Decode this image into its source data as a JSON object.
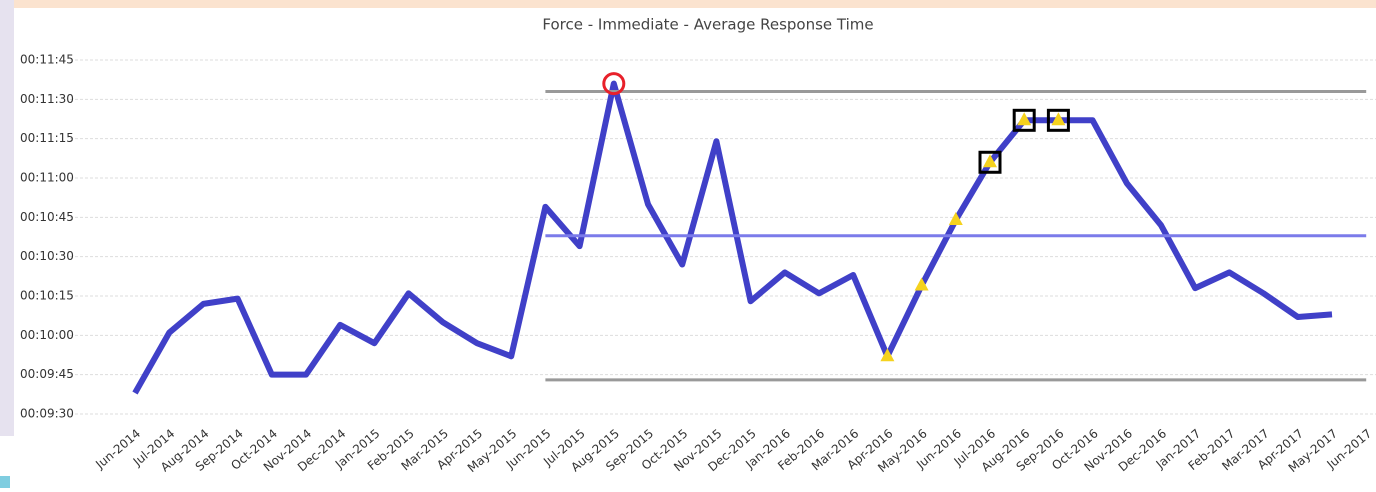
{
  "chart_data": {
    "type": "line",
    "title": "Force - Immediate - Average Response Time",
    "categories": [
      "Jun-2014",
      "Jul-2014",
      "Aug-2014",
      "Sep-2014",
      "Oct-2014",
      "Nov-2014",
      "Dec-2014",
      "Jan-2015",
      "Feb-2015",
      "Mar-2015",
      "Apr-2015",
      "May-2015",
      "Jun-2015",
      "Jul-2015",
      "Aug-2015",
      "Sep-2015",
      "Oct-2015",
      "Nov-2015",
      "Dec-2015",
      "Jan-2016",
      "Feb-2016",
      "Mar-2016",
      "Apr-2016",
      "May-2016",
      "Jun-2016",
      "Jul-2016",
      "Aug-2016",
      "Sep-2016",
      "Oct-2016",
      "Nov-2016",
      "Dec-2016",
      "Jan-2017",
      "Feb-2017",
      "Mar-2017",
      "Apr-2017",
      "May-2017",
      "Jun-2017"
    ],
    "series": [
      {
        "color": "#4040c8",
        "width": 6,
        "values": [
          578,
          601,
          612,
          614,
          585,
          585,
          604,
          597,
          616,
          605,
          597,
          592,
          649,
          634,
          696,
          650,
          627,
          674,
          613,
          624,
          616,
          623,
          592,
          619,
          644,
          666,
          682,
          682,
          682,
          658,
          642,
          618,
          624,
          616,
          607,
          608,
          null
        ]
      },
      {
        "color": "#999999",
        "width": 3,
        "values": [
          null,
          null,
          null,
          null,
          null,
          null,
          null,
          null,
          null,
          null,
          null,
          null,
          693,
          693,
          693,
          693,
          693,
          693,
          693,
          693,
          693,
          693,
          693,
          693,
          693,
          693,
          693,
          693,
          693,
          693,
          693,
          693,
          693,
          693,
          693,
          693,
          693
        ]
      },
      {
        "color": "#7b7bea",
        "width": 3,
        "values": [
          null,
          null,
          null,
          null,
          null,
          null,
          null,
          null,
          null,
          null,
          null,
          null,
          638,
          638,
          638,
          638,
          638,
          638,
          638,
          638,
          638,
          638,
          638,
          638,
          638,
          638,
          638,
          638,
          638,
          638,
          638,
          638,
          638,
          638,
          638,
          638,
          638
        ]
      },
      {
        "color": "#999999",
        "width": 3,
        "values": [
          null,
          null,
          null,
          null,
          null,
          null,
          null,
          null,
          null,
          null,
          null,
          null,
          583,
          583,
          583,
          583,
          583,
          583,
          583,
          583,
          583,
          583,
          583,
          583,
          583,
          583,
          583,
          583,
          583,
          583,
          583,
          583,
          583,
          583,
          583,
          583,
          583
        ]
      }
    ],
    "markers": {
      "circle": [
        14
      ],
      "triangle": [
        22,
        23,
        24,
        25,
        26,
        27
      ],
      "square": [
        25,
        26,
        27
      ]
    },
    "ylim": [
      570,
      705
    ],
    "yticks": [
      {
        "value": 570,
        "label": "00:09:30"
      },
      {
        "value": 585,
        "label": "00:09:45"
      },
      {
        "value": 600,
        "label": "00:10:00"
      },
      {
        "value": 615,
        "label": "00:10:15"
      },
      {
        "value": 630,
        "label": "00:10:30"
      },
      {
        "value": 645,
        "label": "00:10:45"
      },
      {
        "value": 660,
        "label": "00:11:00"
      },
      {
        "value": 675,
        "label": "00:11:15"
      },
      {
        "value": 690,
        "label": "00:11:30"
      },
      {
        "value": 705,
        "label": "00:11:45"
      }
    ],
    "grid": true
  }
}
